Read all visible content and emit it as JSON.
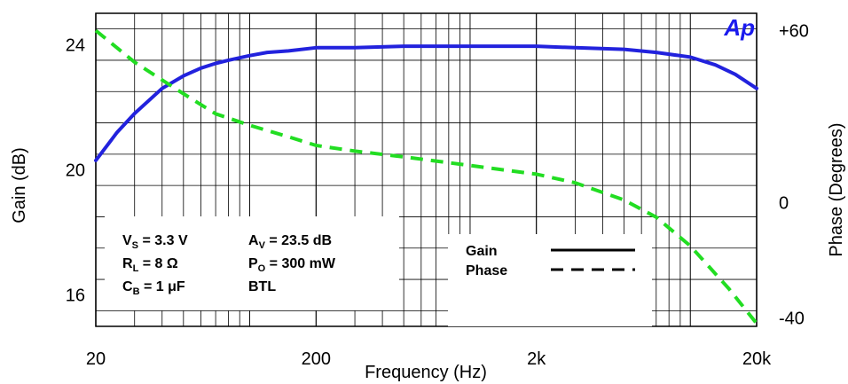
{
  "chart_data": {
    "type": "line",
    "xlabel": "Frequency (Hz)",
    "ylabel": "Gain (dB)",
    "y2label": "Phase (Degrees)",
    "x_scale": "log",
    "xlim": [
      20,
      20000
    ],
    "ylim": [
      15,
      25
    ],
    "y2lim": [
      -43,
      66
    ],
    "grid": true,
    "x_ticks": [
      {
        "value": 20,
        "label": "20"
      },
      {
        "value": 200,
        "label": "200"
      },
      {
        "value": 2000,
        "label": "2k"
      },
      {
        "value": 20000,
        "label": "20k"
      }
    ],
    "y_ticks": [
      {
        "value": 16,
        "label": "16"
      },
      {
        "value": 20,
        "label": "20"
      },
      {
        "value": 24,
        "label": "24"
      }
    ],
    "y2_ticks": [
      {
        "value": 60,
        "label": "+60"
      },
      {
        "value": 0,
        "label": "0"
      },
      {
        "value": -40,
        "label": "-40"
      }
    ],
    "series": [
      {
        "name": "Gain",
        "axis": "left",
        "color": "#2222dd",
        "style": "solid",
        "x": [
          20,
          25,
          30,
          40,
          50,
          60,
          70,
          80,
          100,
          120,
          150,
          200,
          300,
          500,
          1000,
          2000,
          3000,
          5000,
          7000,
          10000,
          13000,
          16000,
          20000
        ],
        "y": [
          20.3,
          21.2,
          21.8,
          22.6,
          23.0,
          23.25,
          23.4,
          23.5,
          23.65,
          23.75,
          23.8,
          23.9,
          23.9,
          23.95,
          23.95,
          23.95,
          23.9,
          23.85,
          23.75,
          23.6,
          23.35,
          23.05,
          22.6
        ]
      },
      {
        "name": "Phase",
        "axis": "right",
        "color": "#22dd22",
        "style": "dashed",
        "x": [
          20,
          30,
          50,
          70,
          100,
          150,
          200,
          300,
          500,
          1000,
          2000,
          3000,
          5000,
          7000,
          10000,
          15000,
          20000
        ],
        "y": [
          60,
          49,
          38,
          31,
          27,
          23,
          20,
          18,
          16,
          13,
          10,
          7,
          1,
          -5,
          -15,
          -30,
          -42
        ]
      }
    ],
    "annotations": [
      {
        "main": "V",
        "sub": "S",
        "rest": " = 3.3 V"
      },
      {
        "main": "R",
        "sub": "L",
        "rest": " = 8 Ω"
      },
      {
        "main": "C",
        "sub": "B",
        "rest": " = 1 μF"
      },
      {
        "main": "A",
        "sub": "V",
        "rest": " = 23.5 dB"
      },
      {
        "main": "P",
        "sub": "O",
        "rest": " = 300 mW"
      },
      {
        "main": "",
        "sub": "",
        "rest": "BTL"
      }
    ],
    "legend": {
      "placement": "bottom-right",
      "entries": [
        {
          "label": "Gain",
          "style": "solid"
        },
        {
          "label": "Phase",
          "style": "dashed"
        }
      ]
    },
    "logo": "Ap",
    "logo_color": "#1a1aee"
  }
}
